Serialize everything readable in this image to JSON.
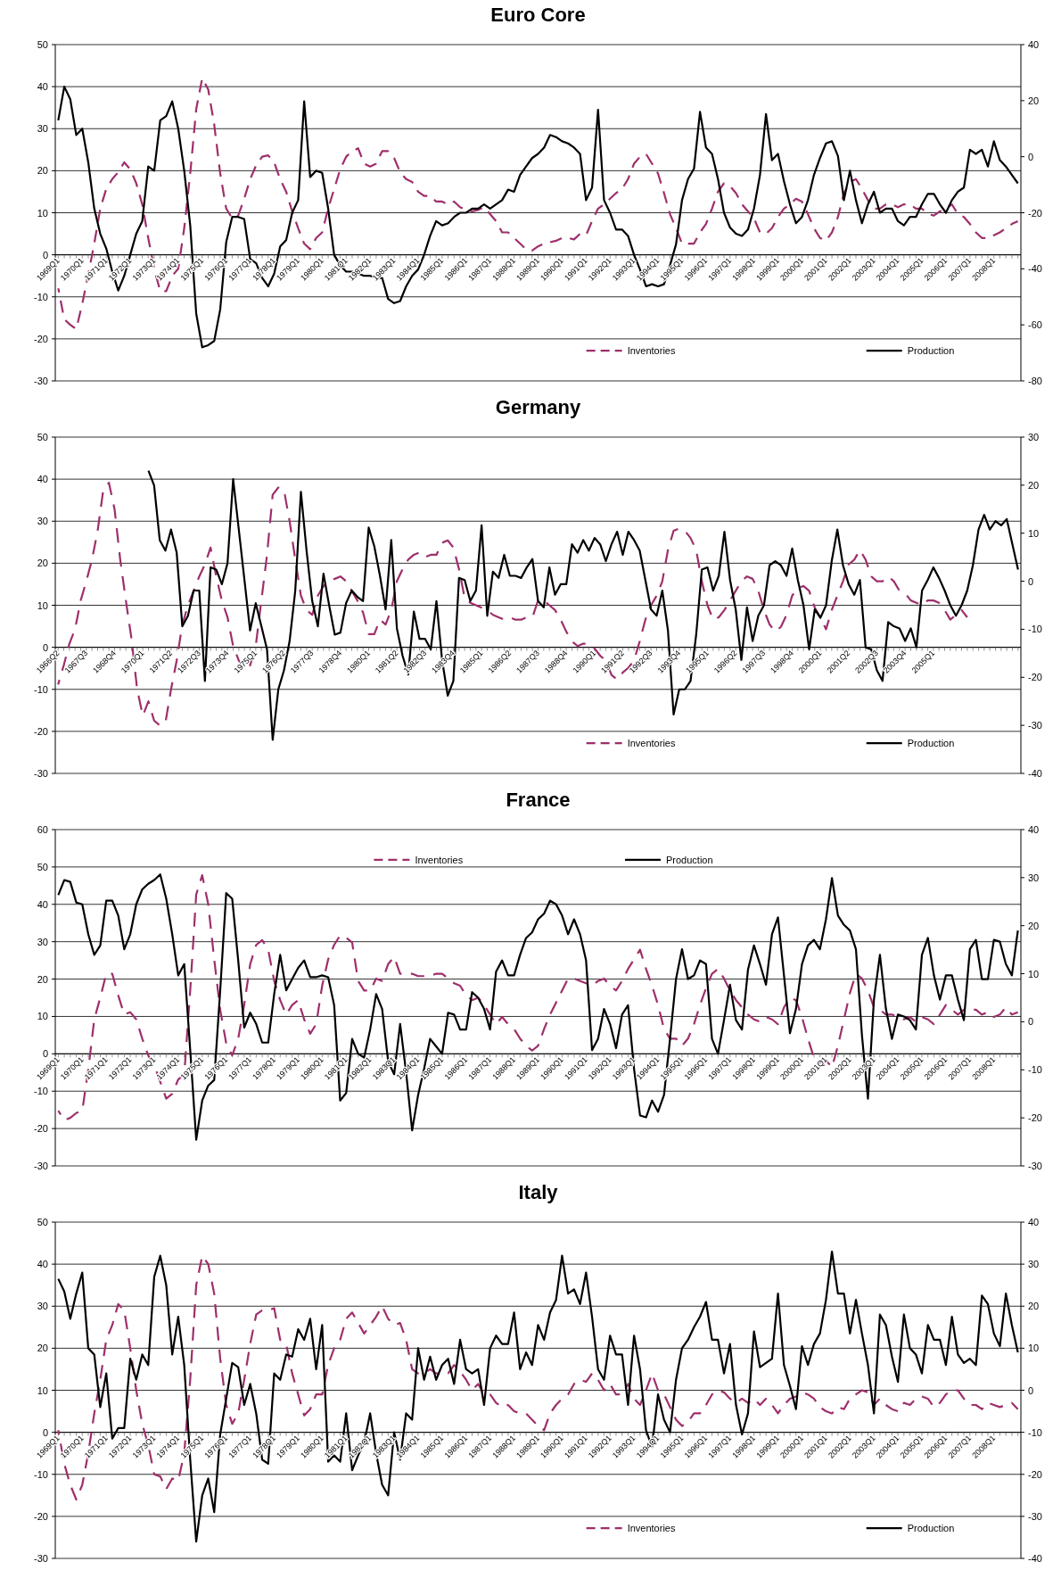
{
  "chart_data": [
    {
      "type": "line",
      "title": "Euro Core",
      "categories": [
        "1969Q1",
        null,
        null,
        null,
        "1970Q1",
        null,
        null,
        null,
        "1971Q1",
        null,
        null,
        null,
        "1972Q1",
        null,
        null,
        null,
        "1973Q1",
        null,
        null,
        null,
        "1974Q1",
        null,
        null,
        null,
        "1975Q1",
        null,
        null,
        null,
        "1976Q1",
        null,
        null,
        null,
        "1977Q1",
        null,
        null,
        null,
        "1978Q1",
        null,
        null,
        null,
        "1979Q1",
        null,
        null,
        null,
        "1980Q1",
        null,
        null,
        null,
        "1981Q1",
        null,
        null,
        null,
        "1982Q1",
        null,
        null,
        null,
        "1983Q1",
        null,
        null,
        null,
        "1984Q1",
        null,
        null,
        null,
        "1985Q1",
        null,
        null,
        null,
        "1986Q1",
        null,
        null,
        null,
        "1987Q1",
        null,
        null,
        null,
        "1988Q1",
        null,
        null,
        null,
        "1989Q1",
        null,
        null,
        null,
        "1990Q1",
        null,
        null,
        null,
        "1991Q1",
        null,
        null,
        null,
        "1992Q1",
        null,
        null,
        null,
        "1993Q1",
        null,
        null,
        null,
        "1994Q1",
        null,
        null,
        null,
        "1995Q1",
        null,
        null,
        null,
        "1996Q1",
        null,
        null,
        null,
        "1997Q1",
        null,
        null,
        null,
        "1998Q1",
        null,
        null,
        null,
        "1999Q1",
        null,
        null,
        null,
        "2000Q1",
        null,
        null,
        null,
        "2001Q1",
        null,
        null,
        null,
        "2002Q1",
        null,
        null,
        null,
        "2003Q1",
        null,
        null,
        null,
        "2004Q1",
        null,
        null,
        null,
        "2005Q1",
        null,
        null,
        null,
        "2006Q1",
        null,
        null,
        null,
        "2007Q1",
        null,
        null,
        null,
        "2008Q1",
        null,
        null,
        null,
        null
      ],
      "series": [
        {
          "name": "Inventories",
          "color": "#9e2f6b",
          "axis": "y2",
          "line_style": "dashed",
          "values": [
            -47,
            -58,
            -60,
            -61.5,
            -52.5,
            -42,
            -31,
            -18.5,
            -11.5,
            -8,
            -5.5,
            -2,
            -4.5,
            -9.5,
            -17,
            -29,
            -40,
            -48,
            -48,
            -42.5,
            -40,
            -25.5,
            -6,
            17,
            28,
            24,
            11.5,
            -6,
            -18.5,
            -22,
            -21,
            -15,
            -8,
            -3,
            0,
            0.5,
            -2,
            -8,
            -12.5,
            -19.5,
            -25.5,
            -31,
            -33,
            -29,
            -27,
            -18.5,
            -11.5,
            -4.5,
            0,
            2,
            3,
            -2.5,
            -3.5,
            -2.5,
            2,
            2,
            -0.5,
            -5.5,
            -8,
            -9,
            -12.5,
            -14,
            -14,
            -16,
            -16,
            -17,
            -16,
            -18,
            -19,
            -19.5,
            -19,
            -18,
            -20.5,
            -23,
            -27,
            -27,
            -29,
            -31,
            -33,
            -33.5,
            -32,
            -31,
            -30.5,
            -30,
            -29,
            -29,
            -29.5,
            -27.5,
            -28,
            -23,
            -18.5,
            -17,
            -15,
            -13,
            -11.5,
            -8,
            -2.5,
            0,
            1,
            -2.5,
            -6,
            -13,
            -20.5,
            -25.5,
            -31,
            -31,
            -31,
            -27,
            -24,
            -18.5,
            -12.5,
            -9.5,
            -10.5,
            -13,
            -17,
            -19.5,
            -22,
            -27,
            -27.5,
            -25.5,
            -21.5,
            -18.5,
            -17,
            -15,
            -16,
            -20.5,
            -25.5,
            -29,
            -30,
            -27,
            -21.5,
            -13,
            -9,
            -8,
            -11.5,
            -15.5,
            -18.5,
            -18.5,
            -17,
            -17,
            -18,
            -17,
            -17,
            -18.5,
            -18.5,
            -20.5,
            -21,
            -19.5,
            -18.5,
            -17,
            -20.5,
            -21.5,
            -24,
            -27,
            -29,
            -29,
            -28,
            -27,
            -25.5,
            -24,
            -23
          ]
        },
        {
          "name": "Production",
          "color": "#000000",
          "line_style": "solid",
          "values": [
            32,
            40,
            37,
            28.5,
            30,
            22,
            11,
            5,
            1.5,
            -4,
            -8.5,
            -5,
            0,
            5,
            8,
            21,
            20,
            32,
            33,
            36.5,
            30,
            20,
            7,
            -14,
            -22,
            -21.5,
            -20.5,
            -13,
            3,
            9,
            9,
            8.5,
            -1,
            -2,
            -5.5,
            -7.5,
            -4.5,
            2,
            3.5,
            10,
            13,
            36.5,
            18.5,
            20,
            19.5,
            11,
            0,
            -2.5,
            -4,
            -4,
            -4.5,
            -5,
            -5,
            -5.5,
            -5.5,
            -10.5,
            -11.5,
            -11,
            -7.5,
            -5,
            -3.5,
            0,
            4.5,
            8,
            7,
            7.5,
            9,
            10,
            10,
            11,
            11,
            12,
            11,
            12,
            13,
            15.5,
            15,
            19,
            21,
            23,
            24,
            25.5,
            28.5,
            28,
            27,
            26.5,
            25.5,
            24,
            13,
            16,
            34.5,
            13,
            10,
            6,
            6,
            4.5,
            0,
            -3.5,
            -7.5,
            -7,
            -7.5,
            -7,
            -2.5,
            2.5,
            13,
            18,
            20.5,
            34,
            25.5,
            24,
            18,
            10,
            6.5,
            5,
            4.5,
            6,
            11,
            19,
            33.5,
            22.5,
            24,
            17.5,
            12,
            7.5,
            9,
            13,
            19,
            23,
            26.5,
            27,
            23.5,
            13,
            20,
            13,
            7.5,
            12,
            15,
            10,
            11,
            11,
            8,
            7,
            9,
            9,
            12,
            14.5,
            14.5,
            12,
            10,
            13,
            15,
            16,
            25,
            24,
            25,
            21,
            27,
            22.5,
            21,
            19,
            17
          ]
        }
      ],
      "ylim": [
        -30,
        50
      ],
      "yticks": [
        -30,
        -20,
        -10,
        0,
        10,
        20,
        30,
        40,
        50
      ],
      "y2lim": [
        -80,
        40
      ],
      "y2ticks": [
        -80,
        -60,
        -40,
        -20,
        0,
        20,
        40
      ],
      "grid": "y",
      "legend": "bottom"
    },
    {
      "type": "line",
      "title": "Germany",
      "categories": [
        "1966Q2",
        null,
        null,
        null,
        null,
        "1967Q3",
        null,
        null,
        null,
        null,
        "1968Q4",
        null,
        null,
        null,
        null,
        "1970Q1",
        null,
        null,
        null,
        null,
        "1971Q2",
        null,
        null,
        null,
        null,
        "1972Q3",
        null,
        null,
        null,
        null,
        "1973Q4",
        null,
        null,
        null,
        null,
        "1975Q1",
        null,
        null,
        null,
        null,
        "1976Q2",
        null,
        null,
        null,
        null,
        "1977Q3",
        null,
        null,
        null,
        null,
        "1978Q4",
        null,
        null,
        null,
        null,
        "1980Q1",
        null,
        null,
        null,
        null,
        "1981Q2",
        null,
        null,
        null,
        null,
        "1982Q3",
        null,
        null,
        null,
        null,
        "1983Q4",
        null,
        null,
        null,
        null,
        "1985Q1",
        null,
        null,
        null,
        null,
        "1986Q2",
        null,
        null,
        null,
        null,
        "1987Q3",
        null,
        null,
        null,
        null,
        "1988Q4",
        null,
        null,
        null,
        null,
        "1990Q1",
        null,
        null,
        null,
        null,
        "1991Q2",
        null,
        null,
        null,
        null,
        "1992Q3",
        null,
        null,
        null,
        null,
        "1993Q4",
        null,
        null,
        null,
        null,
        "1995Q1",
        null,
        null,
        null,
        null,
        "1996Q2",
        null,
        null,
        null,
        null,
        "1997Q3",
        null,
        null,
        null,
        null,
        "1998Q4",
        null,
        null,
        null,
        null,
        "2000Q1",
        null,
        null,
        null,
        null,
        "2001Q2",
        null,
        null,
        null,
        null,
        "2002Q3",
        null,
        null,
        null,
        null,
        "2003Q4",
        null,
        null,
        null,
        null,
        "2005Q1",
        null,
        null,
        null,
        null,
        null,
        null,
        null,
        null,
        null,
        null,
        null,
        null,
        null,
        null,
        null
      ],
      "series": [
        {
          "name": "Inventories",
          "color": "#9e2f6b",
          "axis": "y2",
          "line_style": "dashed",
          "values": [
            -21.5,
            -17.5,
            -13,
            -10,
            -4,
            0,
            4.5,
            10.5,
            19,
            20.5,
            15,
            4.5,
            -4,
            -12,
            -22.5,
            -28,
            -25,
            -29,
            -30,
            -29.5,
            -22.5,
            -16.5,
            -9,
            -5,
            -2,
            1,
            3.5,
            7,
            1,
            -4,
            -7.5,
            -13.5,
            -16.5,
            -18.5,
            -17.5,
            -13.5,
            -4,
            5.5,
            18,
            19.5,
            19,
            12.5,
            4.5,
            -3,
            -6,
            -7,
            -3,
            -1,
            0,
            0.5,
            1,
            0,
            -2,
            -4,
            -6.5,
            -11,
            -11,
            -8,
            -9,
            -6,
            0,
            2.5,
            4.5,
            5.5,
            6,
            5,
            5.5,
            5.5,
            8,
            8.5,
            7,
            2.5,
            -3.5,
            -4.5,
            -5,
            -5.5,
            -6,
            -7,
            -7.5,
            -8,
            -7.5,
            -8,
            -8,
            -7.5,
            -7.5,
            -4,
            -4,
            -5,
            -6,
            -8,
            -10.5,
            -12.5,
            -13.5,
            -13,
            -13,
            -14,
            -15.5,
            -16.5,
            -19.5,
            -20.5,
            -19,
            -18,
            -16.5,
            -12.5,
            -8,
            -5,
            -3,
            0,
            6.5,
            10.5,
            11,
            10.5,
            9,
            6.5,
            0,
            -5,
            -8,
            -7.5,
            -6,
            -4,
            -2,
            0,
            1,
            0.5,
            -2,
            -6,
            -9,
            -10.5,
            -9.5,
            -7,
            -3,
            -1.5,
            -1,
            -2,
            -5.5,
            -7.5,
            -10,
            -6,
            -3,
            0,
            3.5,
            4.5,
            6.5,
            4.5,
            1,
            0,
            0,
            1,
            0,
            -2,
            -2.5,
            -4,
            -4.5,
            -5,
            -4,
            -4,
            -4.5,
            -6,
            -8,
            -7,
            -6,
            -7.5,
            null,
            null,
            null,
            null,
            null,
            null,
            null,
            null,
            null
          ]
        },
        {
          "name": "Production",
          "color": "#000000",
          "line_style": "solid",
          "values": [
            null,
            null,
            null,
            null,
            null,
            null,
            null,
            null,
            null,
            null,
            null,
            null,
            null,
            null,
            null,
            null,
            42,
            38.5,
            25.5,
            23,
            28,
            22.5,
            5,
            7.5,
            13.5,
            13.5,
            -8,
            19,
            18.5,
            15,
            20,
            40,
            28,
            16,
            4,
            10.5,
            5,
            -0.5,
            -22,
            -10,
            -5.5,
            1.5,
            13.5,
            37,
            23,
            11,
            5,
            17.5,
            10,
            3,
            3.5,
            10.5,
            13.5,
            12,
            11,
            28.5,
            24,
            17,
            9,
            25.5,
            4.5,
            -2,
            -6.5,
            8.5,
            2,
            2,
            -0.5,
            11,
            -3,
            -11.5,
            -8,
            16.5,
            16,
            11,
            13.5,
            29,
            7.5,
            18,
            16.5,
            22,
            17,
            17,
            16.5,
            19,
            21,
            11,
            9.5,
            19,
            12.5,
            15,
            15,
            24.5,
            22.5,
            25.5,
            23,
            26,
            24.5,
            20.5,
            24.5,
            27.5,
            22,
            27.5,
            25.5,
            23,
            16,
            9,
            7.5,
            13.5,
            4,
            -16,
            -10,
            -10,
            -8,
            3,
            18.5,
            19,
            13.5,
            17,
            27.5,
            16,
            9,
            -3,
            9.5,
            1.5,
            7.5,
            10,
            19.5,
            20.5,
            19.5,
            17,
            23.5,
            16,
            10,
            -0.5,
            9,
            7,
            10,
            20.5,
            28,
            19.5,
            15,
            12.5,
            16,
            0,
            -0.5,
            -5.5,
            -8,
            6,
            5,
            4.5,
            1.5,
            4.5,
            0,
            13.5,
            16,
            19,
            16.5,
            13.5,
            10,
            7.5,
            10,
            13.5,
            19.5,
            28,
            31.5,
            28,
            30,
            29,
            30.5,
            24.5,
            18.5
          ]
        }
      ],
      "ylim": [
        -30,
        50
      ],
      "yticks": [
        -30,
        -20,
        -10,
        0,
        10,
        20,
        30,
        40,
        50
      ],
      "y2lim": [
        -40,
        30
      ],
      "y2ticks": [
        -40,
        -30,
        -20,
        -10,
        0,
        10,
        20,
        30
      ],
      "grid": "y",
      "legend": "bottom"
    },
    {
      "type": "line",
      "title": "France",
      "categories": [
        "1969Q1",
        null,
        null,
        null,
        "1970Q1",
        null,
        null,
        null,
        "1971Q1",
        null,
        null,
        null,
        "1972Q1",
        null,
        null,
        null,
        "1973Q1",
        null,
        null,
        null,
        "1974Q1",
        null,
        null,
        null,
        "1975Q1",
        null,
        null,
        null,
        "1976Q1",
        null,
        null,
        null,
        "1977Q1",
        null,
        null,
        null,
        "1978Q1",
        null,
        null,
        null,
        "1979Q1",
        null,
        null,
        null,
        "1980Q1",
        null,
        null,
        null,
        "1981Q1",
        null,
        null,
        null,
        "1982Q1",
        null,
        null,
        null,
        "1983Q1",
        null,
        null,
        null,
        "1984Q1",
        null,
        null,
        null,
        "1985Q1",
        null,
        null,
        null,
        "1986Q1",
        null,
        null,
        null,
        "1987Q1",
        null,
        null,
        null,
        "1988Q1",
        null,
        null,
        null,
        "1989Q1",
        null,
        null,
        null,
        "1990Q1",
        null,
        null,
        null,
        "1991Q1",
        null,
        null,
        null,
        "1992Q1",
        null,
        null,
        null,
        "1993Q1",
        null,
        null,
        null,
        "1994Q1",
        null,
        null,
        null,
        "1995Q1",
        null,
        null,
        null,
        "1996Q1",
        null,
        null,
        null,
        "1997Q1",
        null,
        null,
        null,
        "1998Q1",
        null,
        null,
        null,
        "1999Q1",
        null,
        null,
        null,
        "2000Q1",
        null,
        null,
        null,
        "2001Q1",
        null,
        null,
        null,
        "2002Q1",
        null,
        null,
        null,
        "2003Q1",
        null,
        null,
        null,
        "2004Q1",
        null,
        null,
        null,
        "2005Q1",
        null,
        null,
        null,
        "2006Q1",
        null,
        null,
        null,
        "2007Q1",
        null,
        null,
        null,
        "2008Q1",
        null,
        null,
        null,
        null
      ],
      "series": [
        {
          "name": "Inventories",
          "color": "#9e2f6b",
          "axis": "y2",
          "line_style": "dashed",
          "values": [
            -18.5,
            -20.5,
            -20,
            -19,
            -18.5,
            -10,
            0.5,
            5,
            10,
            10,
            5.5,
            1.5,
            2,
            0.5,
            -3.5,
            -7,
            -9,
            -12.5,
            -16,
            -15,
            -12,
            -11,
            6.5,
            26.5,
            30.5,
            24.5,
            13,
            2.5,
            -4.5,
            -7,
            -3.5,
            3.5,
            12,
            16,
            17,
            15,
            8.5,
            4.5,
            1.5,
            3.5,
            4.5,
            0.5,
            -2.5,
            -0.5,
            7.5,
            13,
            16,
            18,
            17.5,
            16.5,
            8.5,
            6.5,
            6.5,
            9,
            8.5,
            12,
            13.5,
            10,
            10,
            10,
            9.5,
            9.5,
            9.5,
            10,
            10,
            9,
            8,
            7.5,
            5.5,
            4.5,
            5,
            3.5,
            1.5,
            -0.5,
            1,
            -0.5,
            -1.5,
            -3.5,
            -5,
            -6,
            -5,
            -1.5,
            1.5,
            4,
            6.5,
            9,
            9,
            8.5,
            8,
            7.5,
            8.5,
            9,
            7.5,
            6.5,
            8.5,
            11,
            13,
            15,
            11,
            7.5,
            3.5,
            -1.5,
            -3.5,
            -3.5,
            -5,
            -3.5,
            -0.5,
            3.5,
            7,
            10,
            11,
            9,
            6.5,
            4.5,
            3,
            1.5,
            0.5,
            0,
            1,
            0.5,
            -0.5,
            3,
            5,
            4.5,
            1,
            -3.5,
            -7.5,
            -8.5,
            -8,
            -9.5,
            -5,
            0.5,
            6,
            10,
            9,
            6.5,
            3,
            2.5,
            1.5,
            1.5,
            1,
            0.5,
            1,
            0,
            1,
            0.5,
            -0.5,
            1.5,
            3.5,
            2.5,
            1.5,
            2.5,
            2.5,
            2.5,
            1.5,
            2,
            1,
            1.5,
            3,
            1.5,
            2
          ]
        },
        {
          "name": "Production",
          "color": "#000000",
          "line_style": "solid",
          "values": [
            42.5,
            46.5,
            46,
            40.5,
            40,
            32,
            26.5,
            29,
            41,
            41,
            37,
            28,
            32,
            40,
            44,
            45.5,
            46.5,
            48,
            41.5,
            32,
            21,
            24,
            1,
            -23,
            -12.5,
            -8.5,
            -7,
            17,
            43,
            41.5,
            25,
            7,
            11,
            8,
            3,
            3,
            16,
            26.5,
            17,
            20,
            23,
            25,
            20.5,
            20.5,
            21,
            20.5,
            13,
            -12.5,
            -10.5,
            4,
            0,
            -1,
            6.5,
            16,
            12,
            -2,
            -5.5,
            8,
            -5,
            -20.5,
            -11,
            -4,
            4,
            2,
            0,
            11,
            10.5,
            6.5,
            6.5,
            16.5,
            15,
            12,
            6.5,
            22,
            25,
            21,
            21,
            26.5,
            31,
            32.5,
            36,
            37.5,
            41,
            40,
            37,
            32,
            36,
            32,
            25,
            1,
            4,
            12,
            8,
            1.5,
            10.5,
            13,
            -4,
            -16.5,
            -17,
            -12.5,
            -15.5,
            -11,
            4,
            20,
            28,
            20,
            21,
            25,
            24,
            4,
            0,
            9,
            18.5,
            9,
            6.5,
            22.5,
            29,
            24,
            18.5,
            32,
            36.5,
            21,
            5.5,
            12,
            24,
            29,
            30.5,
            28,
            36,
            47,
            37,
            34.5,
            33,
            28,
            5,
            -12,
            14.5,
            26.5,
            12,
            4,
            10.5,
            10,
            9,
            6.5,
            26.5,
            31,
            21,
            14.5,
            21,
            21,
            14.5,
            9,
            28,
            30.5,
            20,
            20,
            30.5,
            30,
            24,
            21,
            33
          ]
        }
      ],
      "ylim": [
        -30,
        60
      ],
      "yticks": [
        -30,
        -20,
        -10,
        0,
        10,
        20,
        30,
        40,
        50,
        60
      ],
      "y2lim": [
        -30,
        40
      ],
      "y2ticks": [
        -30,
        -20,
        -10,
        0,
        10,
        20,
        30,
        40
      ],
      "grid": "y",
      "legend": "top"
    },
    {
      "type": "line",
      "title": "Italy",
      "categories": [
        "1969Q1",
        null,
        null,
        null,
        "1970Q1",
        null,
        null,
        null,
        "1971Q1",
        null,
        null,
        null,
        "1972Q1",
        null,
        null,
        null,
        "1973Q1",
        null,
        null,
        null,
        "1974Q1",
        null,
        null,
        null,
        "1975Q1",
        null,
        null,
        null,
        "1976Q1",
        null,
        null,
        null,
        "1977Q1",
        null,
        null,
        null,
        "1978Q1",
        null,
        null,
        null,
        "1979Q1",
        null,
        null,
        null,
        "1980Q1",
        null,
        null,
        null,
        "1981Q1",
        null,
        null,
        null,
        "1982Q1",
        null,
        null,
        null,
        "1983Q1",
        null,
        null,
        null,
        "1984Q1",
        null,
        null,
        null,
        "1985Q1",
        null,
        null,
        null,
        "1986Q1",
        null,
        null,
        null,
        "1987Q1",
        null,
        null,
        null,
        "1988Q1",
        null,
        null,
        null,
        "1989Q1",
        null,
        null,
        null,
        "1990Q1",
        null,
        null,
        null,
        "1991Q1",
        null,
        null,
        null,
        "1992Q1",
        null,
        null,
        null,
        "1993Q1",
        null,
        null,
        null,
        "1994Q1",
        null,
        null,
        null,
        "1995Q1",
        null,
        null,
        null,
        "1996Q1",
        null,
        null,
        null,
        "1997Q1",
        null,
        null,
        null,
        "1998Q1",
        null,
        null,
        null,
        "1999Q1",
        null,
        null,
        null,
        "2000Q1",
        null,
        null,
        null,
        "2001Q1",
        null,
        null,
        null,
        "2002Q1",
        null,
        null,
        null,
        "2003Q1",
        null,
        null,
        null,
        "2004Q1",
        null,
        null,
        null,
        "2005Q1",
        null,
        null,
        null,
        "2006Q1",
        null,
        null,
        null,
        "2007Q1",
        null,
        null,
        null,
        "2008Q1",
        null,
        null,
        null,
        null
      ],
      "series": [
        {
          "name": "Inventories",
          "color": "#9e2f6b",
          "axis": "y2",
          "line_style": "dashed",
          "values": [
            -9.5,
            -17.5,
            -22.5,
            -26,
            -22.5,
            -15,
            -5.5,
            2.5,
            12,
            15.5,
            20.5,
            19,
            10,
            0,
            -8,
            -13,
            -20,
            -20.5,
            -23.5,
            -21,
            -21.5,
            -15,
            2.5,
            25,
            32,
            30,
            23,
            7.5,
            -3.5,
            -8,
            -5.5,
            2.5,
            11,
            18,
            19,
            19,
            19.5,
            12,
            11,
            4,
            -1,
            -6,
            -4.5,
            -1,
            -1,
            6,
            10,
            12,
            17,
            18.5,
            16,
            13.5,
            15.5,
            17.5,
            20,
            17,
            15.5,
            16,
            12,
            5,
            4,
            4,
            5,
            4,
            4,
            4,
            6,
            4.5,
            2.5,
            0,
            1.5,
            -1,
            -1,
            -3,
            -4,
            -3.5,
            -5,
            -5.5,
            -5.5,
            -7,
            -8.5,
            -9.5,
            -5.5,
            -3.5,
            -2,
            -1,
            1.5,
            2.5,
            2,
            4,
            2.5,
            0,
            1.5,
            -1,
            -1,
            1.5,
            -2,
            -3.5,
            0,
            4,
            0,
            -1,
            -4,
            -7,
            -8.5,
            -7.5,
            -5.5,
            -5.5,
            -3.5,
            -1,
            0,
            -0.5,
            -2,
            -3,
            -2,
            -3,
            -2,
            -3.5,
            -2,
            -3.5,
            -5.5,
            -3.5,
            -2,
            -1.5,
            -0.5,
            -1,
            -2,
            -4,
            -5,
            -5.5,
            -4,
            -4.5,
            -2,
            -1,
            0,
            -0.5,
            -3.5,
            -2,
            -3.5,
            -4.5,
            -5,
            -3,
            -3.5,
            -2,
            -1.5,
            -2,
            -4,
            -3,
            -1,
            0,
            0,
            -2,
            -3.5,
            -3.5,
            -4.5,
            -3,
            -3.5,
            -4,
            -3.5,
            -3,
            -4.5
          ]
        },
        {
          "name": "Production",
          "color": "#000000",
          "line_style": "solid",
          "values": [
            36.5,
            33.5,
            27,
            33,
            38,
            20,
            18.5,
            6,
            14,
            -1.5,
            1,
            1,
            17.5,
            12.5,
            18.5,
            16,
            37,
            42,
            35,
            18.5,
            27.5,
            16,
            -6.5,
            -26,
            -15,
            -11,
            -19,
            -0.5,
            8,
            16.5,
            15.5,
            6.5,
            11.5,
            4.5,
            -6.5,
            -7.5,
            14,
            12.5,
            18.5,
            18,
            24.5,
            22,
            27,
            15,
            25.5,
            -7,
            -5.5,
            -7,
            4.5,
            -9,
            -5.5,
            -2.5,
            4.5,
            -5,
            -12.5,
            -15,
            0,
            -6.5,
            4.5,
            3,
            20,
            12.5,
            18,
            12.5,
            16,
            17.5,
            11.5,
            22,
            15,
            14,
            15,
            6.5,
            20,
            23,
            21,
            21,
            28.5,
            15,
            19,
            16,
            25.5,
            22,
            28.5,
            31.5,
            42,
            33,
            34,
            30.5,
            38,
            27.5,
            15,
            12.5,
            23,
            18.5,
            18.5,
            6.5,
            23,
            15,
            0.5,
            -3.5,
            9,
            3,
            0,
            12.5,
            20,
            22,
            25,
            27.5,
            31,
            22,
            22,
            14,
            21,
            6.5,
            -0.5,
            4.5,
            24,
            15.5,
            16.5,
            17.5,
            33,
            16,
            11,
            5.5,
            20.5,
            16,
            21,
            23.5,
            31.5,
            43,
            33,
            33,
            23.5,
            31.5,
            23.5,
            16,
            4.5,
            28,
            25.5,
            18,
            12,
            28,
            20,
            18.5,
            14,
            25.5,
            22,
            22,
            16,
            27.5,
            18.5,
            16.5,
            17.5,
            16,
            32.5,
            30.5,
            23.5,
            20.5,
            33,
            25.5,
            19
          ]
        }
      ],
      "ylim": [
        -30,
        50
      ],
      "yticks": [
        -30,
        -20,
        -10,
        0,
        10,
        20,
        30,
        40,
        50
      ],
      "y2lim": [
        -40,
        40
      ],
      "y2ticks": [
        -40,
        -30,
        -20,
        -10,
        0,
        10,
        20,
        30,
        40
      ],
      "grid": "y",
      "legend": "bottom"
    }
  ]
}
